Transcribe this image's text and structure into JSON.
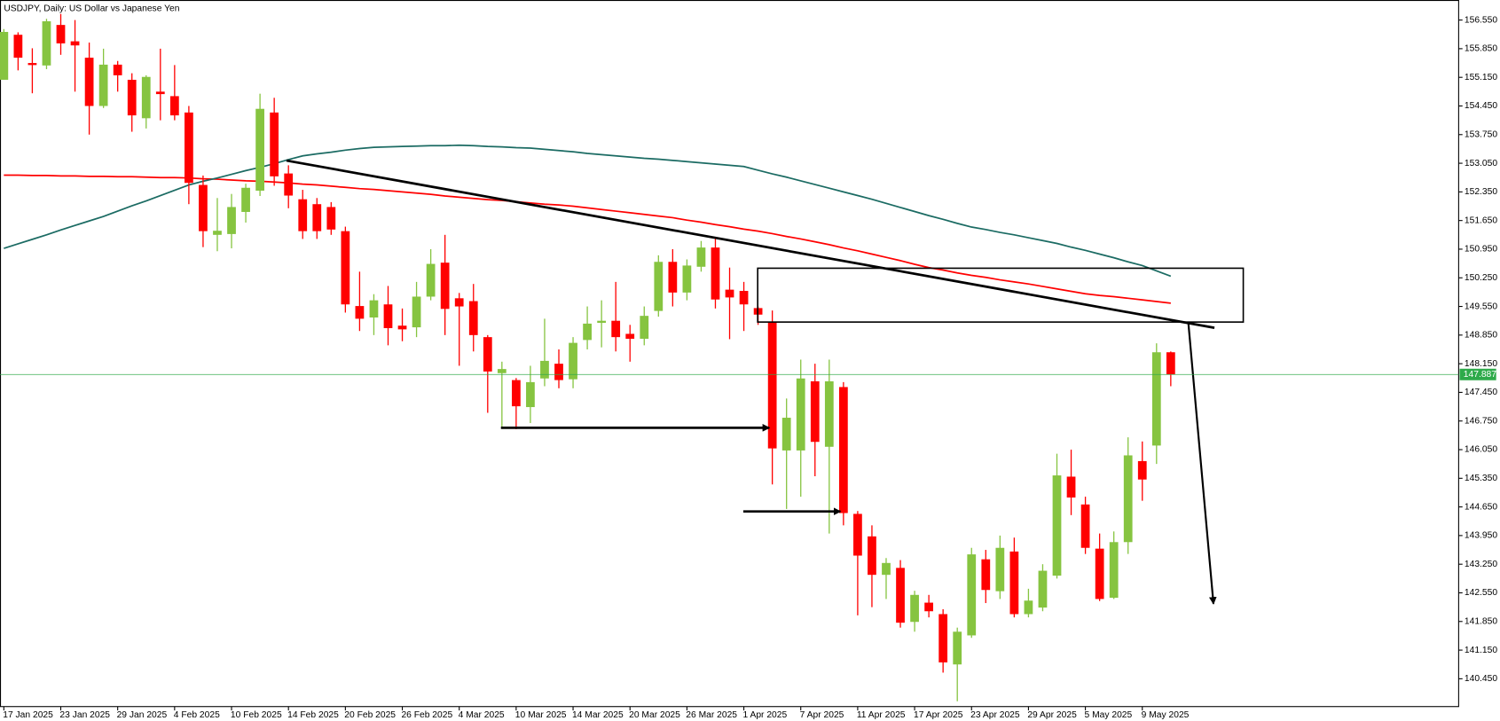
{
  "chart_data": {
    "type": "candlestick",
    "title": "USDJPY, Daily:  US Dollar vs Japanese Yen",
    "categories": [
      "17 Jan 2025",
      null,
      null,
      null,
      "23 Jan 2025",
      null,
      null,
      null,
      "29 Jan 2025",
      null,
      null,
      null,
      "4 Feb 2025",
      null,
      null,
      null,
      "10 Feb 2025",
      null,
      null,
      null,
      "14 Feb 2025",
      null,
      null,
      null,
      "20 Feb 2025",
      null,
      null,
      null,
      "26 Feb 2025",
      null,
      null,
      null,
      "4 Mar 2025",
      null,
      null,
      null,
      "10 Mar 2025",
      null,
      null,
      null,
      "14 Mar 2025",
      null,
      null,
      null,
      "20 Mar 2025",
      null,
      null,
      null,
      "26 Mar 2025",
      null,
      null,
      null,
      "1 Apr 2025",
      null,
      null,
      null,
      "7 Apr 2025",
      null,
      null,
      null,
      "11 Apr 2025",
      null,
      null,
      null,
      "17 Apr 2025",
      null,
      null,
      null,
      "23 Apr 2025",
      null,
      null,
      null,
      "29 Apr 2025",
      null,
      null,
      null,
      "5 May 2025",
      null,
      null,
      null,
      "9 May 2025",
      null,
      null
    ],
    "open": [
      155.09,
      156.19,
      155.5,
      155.44,
      156.43,
      156.03,
      155.63,
      154.45,
      155.46,
      155.09,
      154.15,
      154.8,
      154.69,
      154.29,
      152.52,
      151.3,
      151.32,
      151.86,
      152.38,
      154.29,
      152.8,
      152.17,
      152.05,
      151.98,
      151.39,
      149.56,
      149.28,
      149.6,
      149.08,
      149.04,
      149.79,
      150.62,
      149.75,
      149.68,
      148.8,
      147.92,
      147.75,
      147.09,
      147.79,
      148.15,
      147.77,
      148.73,
      149.15,
      149.2,
      148.88,
      148.76,
      149.44,
      150.64,
      149.89,
      150.52,
      150.99,
      149.96,
      149.93,
      149.51,
      149.16,
      146.03,
      146.03,
      147.72,
      146.12,
      147.58,
      144.48,
      143.93,
      142.99,
      143.16,
      141.84,
      142.31,
      142.03,
      140.8,
      141.51,
      143.37,
      142.59,
      143.56,
      142.03,
      142.19,
      142.97,
      145.39,
      144.71,
      143.63,
      142.43,
      143.79,
      145.77,
      146.15,
      148.43
    ],
    "high": [
      156.33,
      156.25,
      155.86,
      156.58,
      156.7,
      156.55,
      156.0,
      155.85,
      155.55,
      155.25,
      155.2,
      155.85,
      155.45,
      154.45,
      152.75,
      152.2,
      152.3,
      152.55,
      154.75,
      154.65,
      153.0,
      152.4,
      152.2,
      152.1,
      151.5,
      150.4,
      149.85,
      150.05,
      149.5,
      150.15,
      150.95,
      151.3,
      149.88,
      150.1,
      148.85,
      148.2,
      147.8,
      148.1,
      149.25,
      148.5,
      148.8,
      149.55,
      149.7,
      150.15,
      149.1,
      149.55,
      150.8,
      150.95,
      150.7,
      151.15,
      151.2,
      150.5,
      150.15,
      149.55,
      149.45,
      147.3,
      148.25,
      148.15,
      148.25,
      147.7,
      144.55,
      144.2,
      143.4,
      143.35,
      142.6,
      142.5,
      142.15,
      141.7,
      143.65,
      143.6,
      143.95,
      143.9,
      142.65,
      143.25,
      145.95,
      146.05,
      144.9,
      144.0,
      144.05,
      146.35,
      146.25,
      148.65,
      148.45
    ],
    "low": [
      155.09,
      155.32,
      154.76,
      155.35,
      155.7,
      154.8,
      153.75,
      154.4,
      154.8,
      153.82,
      153.9,
      154.1,
      154.1,
      152.05,
      151.0,
      150.9,
      150.97,
      151.6,
      152.25,
      152.5,
      151.95,
      151.2,
      151.2,
      151.3,
      149.4,
      148.95,
      148.85,
      148.6,
      148.7,
      148.8,
      149.7,
      148.85,
      148.1,
      148.45,
      146.95,
      146.6,
      146.55,
      146.7,
      147.6,
      147.55,
      147.55,
      148.5,
      148.55,
      148.45,
      148.2,
      148.6,
      149.3,
      149.55,
      149.7,
      150.4,
      149.5,
      148.75,
      148.95,
      149.1,
      145.2,
      144.6,
      144.9,
      145.4,
      144.0,
      144.2,
      142.0,
      142.2,
      142.4,
      141.7,
      141.6,
      141.95,
      140.6,
      139.9,
      141.45,
      142.3,
      142.4,
      141.95,
      141.95,
      142.1,
      142.9,
      144.45,
      143.5,
      142.35,
      142.4,
      143.5,
      144.8,
      145.7,
      147.6
    ],
    "close": [
      156.26,
      155.63,
      155.45,
      156.52,
      155.98,
      155.93,
      154.45,
      155.46,
      155.2,
      154.22,
      155.16,
      154.74,
      154.22,
      152.57,
      151.39,
      151.4,
      151.98,
      152.45,
      154.38,
      152.73,
      152.26,
      151.39,
      151.39,
      151.43,
      149.6,
      149.25,
      149.7,
      149.02,
      148.99,
      149.79,
      150.59,
      149.49,
      149.55,
      148.85,
      147.96,
      148.02,
      147.11,
      147.7,
      148.22,
      147.75,
      148.66,
      149.13,
      149.2,
      148.8,
      148.76,
      149.32,
      150.64,
      149.89,
      150.55,
      150.99,
      149.72,
      149.77,
      149.6,
      149.35,
      146.08,
      146.83,
      147.79,
      146.24,
      147.72,
      144.5,
      143.46,
      142.99,
      143.28,
      141.82,
      142.5,
      142.1,
      140.85,
      141.6,
      143.49,
      142.62,
      143.65,
      142.03,
      142.36,
      143.09,
      145.42,
      144.88,
      143.65,
      142.4,
      143.79,
      145.91,
      145.32,
      148.43,
      147.89
    ],
    "up_color": "#86c440",
    "down_color": "#ff0000",
    "lines": [
      {
        "color": "#ff0000",
        "values": [
          152.76,
          152.76,
          152.75,
          152.75,
          152.74,
          152.74,
          152.73,
          152.73,
          152.72,
          152.72,
          152.71,
          152.7,
          152.7,
          152.69,
          152.67,
          152.66,
          152.64,
          152.62,
          152.61,
          152.59,
          152.57,
          152.54,
          152.52,
          152.49,
          152.46,
          152.43,
          152.41,
          152.38,
          152.35,
          152.32,
          152.29,
          152.25,
          152.22,
          152.19,
          152.16,
          152.14,
          152.11,
          152.08,
          152.05,
          152.03,
          152.0,
          151.96,
          151.92,
          151.88,
          151.84,
          151.8,
          151.76,
          151.72,
          151.66,
          151.61,
          151.55,
          151.5,
          151.44,
          151.39,
          151.33,
          151.26,
          151.2,
          151.13,
          151.06,
          150.98,
          150.91,
          150.83,
          150.75,
          150.67,
          150.58,
          150.5,
          150.44,
          150.37,
          150.31,
          150.26,
          150.2,
          150.15,
          150.1,
          150.04,
          149.98,
          149.92,
          149.86,
          149.82,
          149.79,
          149.75,
          149.71,
          149.67,
          149.63
        ]
      },
      {
        "color": "#1b6b63",
        "values": [
          150.97,
          151.08,
          151.19,
          151.3,
          151.42,
          151.53,
          151.64,
          151.75,
          151.88,
          152.01,
          152.13,
          152.26,
          152.39,
          152.52,
          152.61,
          152.69,
          152.78,
          152.87,
          152.95,
          153.04,
          153.14,
          153.23,
          153.28,
          153.32,
          153.37,
          153.41,
          153.44,
          153.45,
          153.46,
          153.47,
          153.48,
          153.48,
          153.49,
          153.48,
          153.46,
          153.45,
          153.43,
          153.42,
          153.39,
          153.36,
          153.33,
          153.29,
          153.26,
          153.23,
          153.2,
          153.17,
          153.15,
          153.12,
          153.09,
          153.06,
          153.03,
          153.0,
          152.97,
          152.88,
          152.79,
          152.71,
          152.62,
          152.53,
          152.44,
          152.35,
          152.26,
          152.17,
          152.07,
          151.97,
          151.87,
          151.77,
          151.68,
          151.58,
          151.49,
          151.43,
          151.36,
          151.3,
          151.23,
          151.16,
          151.09,
          151.0,
          150.92,
          150.83,
          150.74,
          150.64,
          150.55,
          150.42,
          150.29
        ]
      }
    ],
    "last_price": 147.887,
    "last_price_color": "#2eaa4a",
    "ylim": [
      139.77,
      157.04
    ],
    "yticks": [
      {
        "value": 156.55,
        "label": "156.550"
      },
      {
        "value": 155.85,
        "label": "155.850"
      },
      {
        "value": 155.15,
        "label": "155.150"
      },
      {
        "value": 154.45,
        "label": "154.450"
      },
      {
        "value": 153.75,
        "label": "153.750"
      },
      {
        "value": 153.05,
        "label": "153.050"
      },
      {
        "value": 152.35,
        "label": "152.350"
      },
      {
        "value": 151.65,
        "label": "151.650"
      },
      {
        "value": 150.95,
        "label": "150.950"
      },
      {
        "value": 150.25,
        "label": "150.250"
      },
      {
        "value": 149.55,
        "label": "149.550"
      },
      {
        "value": 148.85,
        "label": "148.850"
      },
      {
        "value": 148.15,
        "label": "148.150"
      },
      {
        "value": 147.45,
        "label": "147.450"
      },
      {
        "value": 146.75,
        "label": "146.750"
      },
      {
        "value": 146.05,
        "label": "146.050"
      },
      {
        "value": 145.35,
        "label": "145.350"
      },
      {
        "value": 144.65,
        "label": "144.650"
      },
      {
        "value": 143.95,
        "label": "143.950"
      },
      {
        "value": 143.25,
        "label": "143.250"
      },
      {
        "value": 142.55,
        "label": "142.550"
      },
      {
        "value": 141.85,
        "label": "141.850"
      },
      {
        "value": 141.15,
        "label": "141.150"
      },
      {
        "value": 140.45,
        "label": "140.450"
      }
    ],
    "grid": false
  }
}
